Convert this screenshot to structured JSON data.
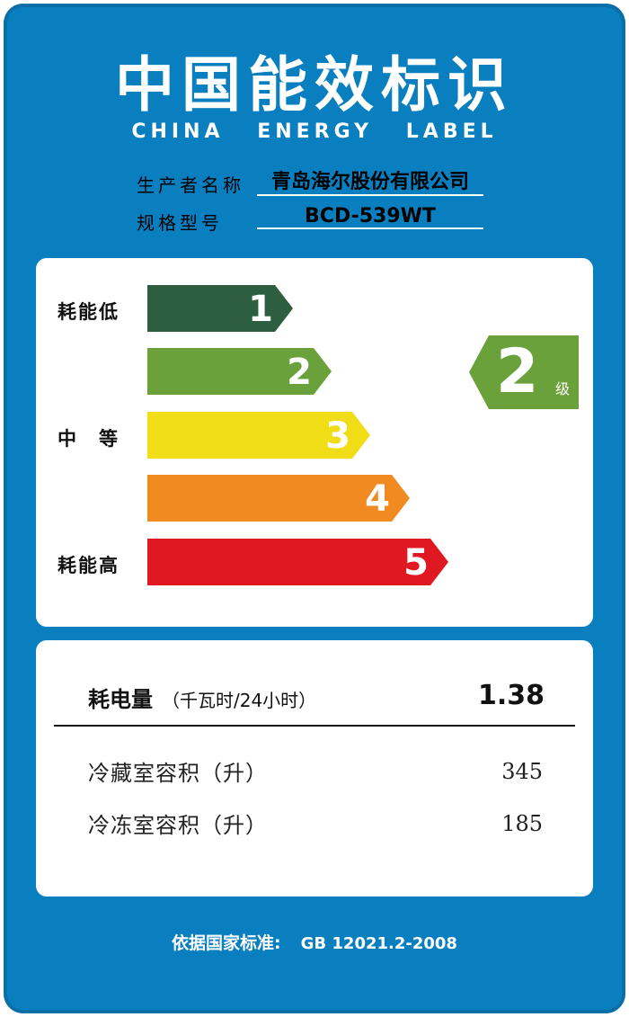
{
  "colors": {
    "background_blue": "#0a7fc0",
    "grade_1": "#2c5e3f",
    "grade_2": "#6aa13a",
    "grade_3": "#f1dd16",
    "grade_4": "#f28a22",
    "grade_5": "#e01822"
  },
  "title": {
    "cn": "中国能效标识",
    "en": "CHINA ENERGY LABEL"
  },
  "producer": {
    "label": "生产者名称",
    "value": "青岛海尔股份有限公司"
  },
  "model": {
    "label": "规格型号",
    "value": "BCD-539WT"
  },
  "scale": {
    "side_labels": [
      "耗能低",
      "中　等",
      "耗能高"
    ],
    "grades": [
      "1",
      "2",
      "3",
      "4",
      "5"
    ]
  },
  "rating": {
    "grade": "2",
    "unit": "级"
  },
  "specs": {
    "consumption_label": "耗电量",
    "consumption_unit": "（千瓦时/24小时）",
    "consumption_value": "1.38",
    "rows": [
      {
        "label": "冷藏室容积（升）",
        "value": "345"
      },
      {
        "label": "冷冻室容积（升）",
        "value": "185"
      }
    ]
  },
  "standard": {
    "label": "依据国家标准:",
    "code": "GB 12021.2-2008"
  }
}
